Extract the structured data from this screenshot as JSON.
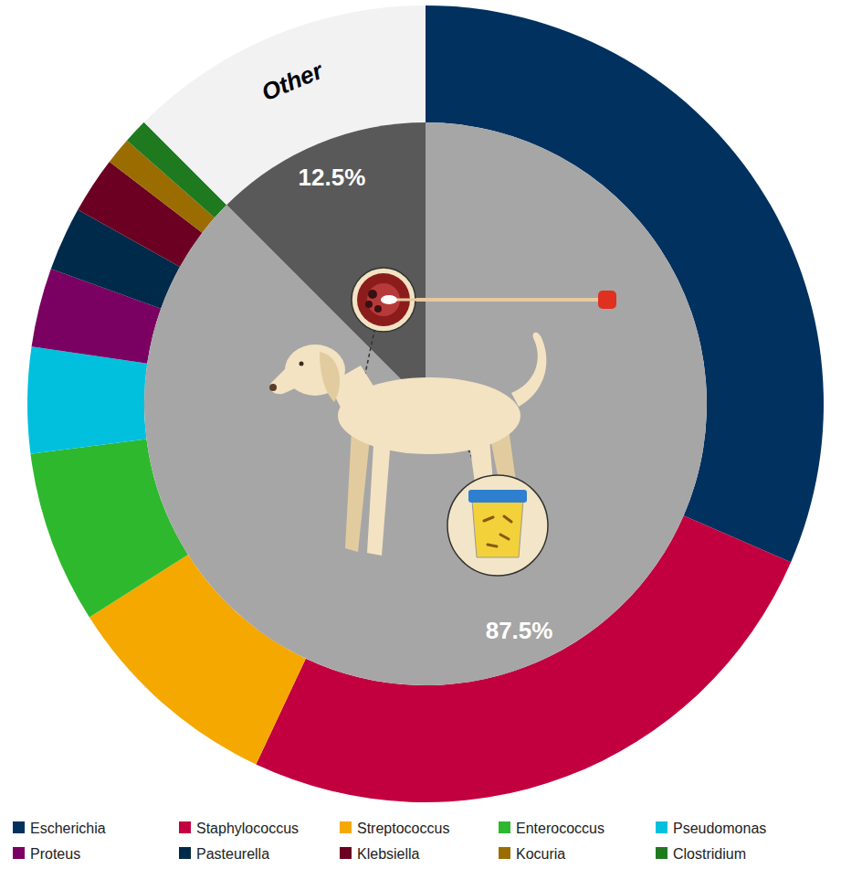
{
  "chart_data": [
    {
      "type": "donut",
      "categories": [
        "Escherichia",
        "Staphylococcus",
        "Streptococcus",
        "Enterococcus",
        "Pseudomonas",
        "Proteus",
        "Pasteurella",
        "Klebsiella",
        "Kocuria",
        "Clostridium",
        "Other"
      ],
      "values": [
        31.5,
        25.5,
        9,
        7,
        4.3,
        3.2,
        2.6,
        2.3,
        1.1,
        1.0,
        12.5
      ],
      "colors": [
        "#00315f",
        "#c2003f",
        "#f5a800",
        "#2eb82e",
        "#00c0de",
        "#7a0061",
        "#002a4a",
        "#6c0022",
        "#9b6c00",
        "#1f7a1f",
        "#f2f2f2"
      ],
      "legend": "bottom"
    },
    {
      "type": "pie",
      "values": [
        87.5,
        12.5
      ],
      "value_labels": [
        "87.5%",
        "12.5%"
      ],
      "colors": [
        "#a6a6a6",
        "#595959"
      ],
      "data_labels": true
    }
  ]
}
